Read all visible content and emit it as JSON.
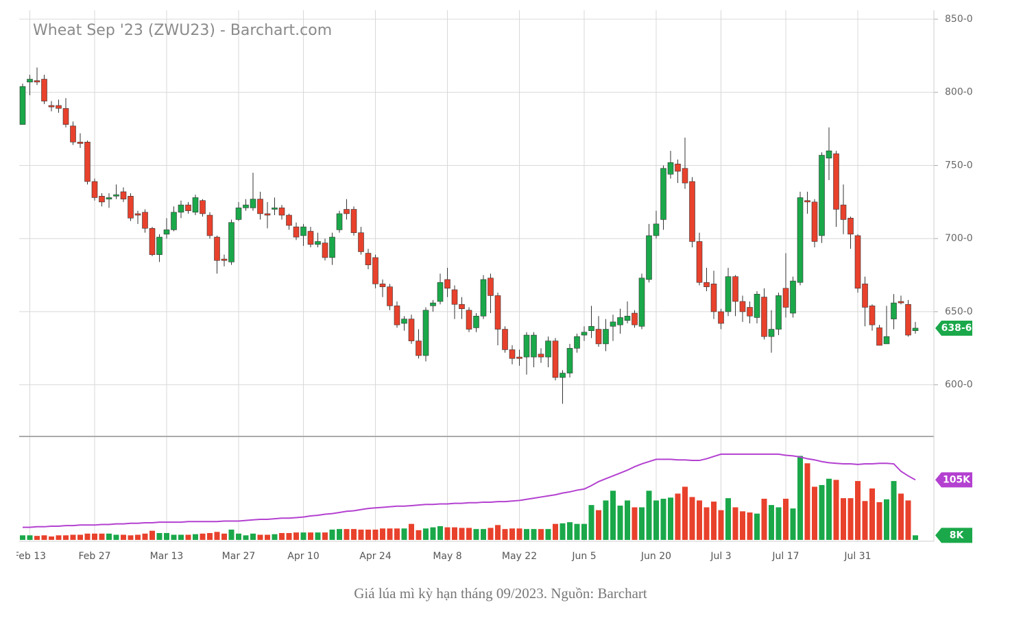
{
  "chart_data": {
    "type": "candlestick",
    "title": "Wheat Sep '23 (ZWU23) - Barchart.com",
    "caption": "Giá lúa mì kỳ hạn tháng 09/2023. Nguồn: Barchart",
    "categories": [
      null,
      "Feb 13",
      null,
      null,
      null,
      null,
      null,
      null,
      null,
      null,
      "Feb 27",
      null,
      null,
      null,
      null,
      null,
      null,
      null,
      null,
      null,
      "Mar 13",
      null,
      null,
      null,
      null,
      null,
      null,
      null,
      null,
      null,
      "Mar 27",
      null,
      null,
      null,
      null,
      null,
      null,
      null,
      null,
      "Apr 10",
      null,
      null,
      null,
      null,
      null,
      null,
      null,
      null,
      null,
      "Apr 24",
      null,
      null,
      null,
      null,
      null,
      null,
      null,
      null,
      null,
      "May 8",
      null,
      null,
      null,
      null,
      null,
      null,
      null,
      null,
      null,
      "May 22",
      null,
      null,
      null,
      null,
      null,
      null,
      null,
      null,
      "Jun 5",
      null,
      null,
      null,
      null,
      null,
      null,
      null,
      null,
      null,
      "Jun 20",
      null,
      null,
      null,
      null,
      null,
      null,
      null,
      null,
      "Jul 3",
      null,
      null,
      null,
      null,
      null,
      null,
      null,
      null,
      "Jul 17",
      null,
      null,
      null,
      null,
      null,
      null,
      null,
      null,
      null,
      "Jul 31",
      null,
      null,
      null,
      null,
      null,
      null,
      null,
      null
    ],
    "open": [
      778,
      807,
      808,
      809,
      791,
      791,
      789,
      777,
      766,
      766,
      739,
      729,
      727,
      729,
      732,
      729,
      717,
      718,
      707,
      689,
      703,
      706,
      718,
      723,
      718,
      726,
      716,
      701,
      686,
      684,
      713,
      721,
      721,
      727,
      717,
      720,
      721,
      716,
      708,
      702,
      705,
      696,
      697,
      687,
      706,
      720,
      720,
      704,
      690,
      687,
      669,
      667,
      654,
      642,
      645,
      630,
      620,
      654,
      657,
      672,
      665,
      655,
      651,
      639,
      647,
      673,
      661,
      638,
      624,
      619,
      619,
      619,
      621,
      619,
      630,
      605,
      608,
      625,
      634,
      637,
      638,
      628,
      640,
      641,
      644,
      649,
      640,
      672,
      702,
      713,
      744,
      751,
      748,
      739,
      698,
      670,
      669,
      650,
      650,
      674,
      657,
      653,
      646,
      660,
      633,
      638,
      666,
      649,
      670,
      726,
      725,
      702,
      755,
      758,
      723,
      714,
      702,
      669,
      654,
      639,
      628,
      645,
      657,
      655,
      637
    ],
    "high": [
      806,
      812,
      817,
      812,
      794,
      795,
      796,
      780,
      772,
      767,
      741,
      731,
      731,
      737,
      735,
      731,
      719,
      720,
      708,
      703,
      714,
      722,
      726,
      725,
      730,
      727,
      718,
      702,
      689,
      713,
      725,
      727,
      745,
      732,
      725,
      728,
      723,
      717,
      711,
      710,
      708,
      704,
      700,
      704,
      719,
      727,
      722,
      708,
      693,
      689,
      672,
      669,
      657,
      647,
      648,
      638,
      653,
      658,
      676,
      680,
      668,
      660,
      653,
      649,
      675,
      676,
      663,
      640,
      627,
      624,
      636,
      636,
      625,
      633,
      632,
      610,
      628,
      635,
      640,
      654,
      647,
      645,
      648,
      652,
      657,
      651,
      676,
      710,
      719,
      750,
      760,
      754,
      769,
      742,
      704,
      680,
      678,
      652,
      680,
      675,
      661,
      657,
      664,
      666,
      651,
      663,
      690,
      674,
      732,
      732,
      727,
      759,
      776,
      760,
      737,
      715,
      703,
      674,
      655,
      641,
      654,
      662,
      661,
      658,
      643
    ],
    "low": [
      778,
      798,
      805,
      792,
      787,
      786,
      776,
      764,
      762,
      737,
      726,
      722,
      721,
      727,
      725,
      712,
      710,
      704,
      688,
      684,
      700,
      705,
      714,
      717,
      716,
      715,
      700,
      676,
      681,
      682,
      712,
      719,
      719,
      713,
      707,
      716,
      713,
      706,
      699,
      695,
      694,
      694,
      685,
      682,
      704,
      713,
      702,
      689,
      679,
      666,
      660,
      651,
      639,
      637,
      628,
      618,
      616,
      650,
      655,
      660,
      645,
      645,
      636,
      636,
      645,
      649,
      627,
      622,
      614,
      613,
      607,
      612,
      615,
      612,
      603,
      587,
      605,
      622,
      630,
      632,
      626,
      623,
      630,
      635,
      642,
      639,
      638,
      670,
      700,
      706,
      741,
      738,
      734,
      694,
      668,
      664,
      645,
      638,
      647,
      647,
      643,
      642,
      642,
      631,
      622,
      634,
      646,
      646,
      668,
      717,
      694,
      697,
      740,
      708,
      703,
      693,
      663,
      640,
      637,
      627,
      628,
      638,
      655,
      633,
      635
    ],
    "close": [
      804,
      809,
      807,
      794,
      790,
      789,
      778,
      766,
      765,
      739,
      728,
      725,
      728,
      730,
      727,
      714,
      716,
      707,
      689,
      701,
      706,
      718,
      723,
      719,
      728,
      717,
      702,
      685,
      685,
      711,
      721,
      723,
      727,
      717,
      716,
      721,
      716,
      709,
      701,
      708,
      696,
      698,
      687,
      701,
      717,
      717,
      704,
      691,
      682,
      669,
      667,
      654,
      641,
      645,
      630,
      620,
      651,
      656,
      670,
      666,
      655,
      652,
      638,
      647,
      672,
      661,
      638,
      624,
      618,
      618,
      634,
      634,
      619,
      630,
      605,
      608,
      625,
      633,
      636,
      640,
      628,
      638,
      643,
      646,
      647,
      641,
      673,
      702,
      710,
      748,
      752,
      746,
      738,
      698,
      670,
      667,
      650,
      642,
      674,
      657,
      650,
      647,
      662,
      633,
      638,
      661,
      653,
      671,
      728,
      725,
      698,
      757,
      760,
      720,
      713,
      703,
      666,
      653,
      641,
      627,
      633,
      656,
      656,
      634,
      638.75
    ],
    "volume": [
      8000,
      8000,
      7000,
      8000,
      6000,
      8000,
      8000,
      9000,
      9000,
      11000,
      11000,
      11000,
      11000,
      9000,
      9000,
      8000,
      9000,
      11000,
      16000,
      12000,
      12000,
      9000,
      9000,
      9000,
      10000,
      11000,
      12000,
      14000,
      11000,
      18000,
      11000,
      8000,
      11000,
      9000,
      9000,
      10000,
      12000,
      12000,
      13000,
      13000,
      13000,
      13000,
      13000,
      18000,
      19000,
      19000,
      19000,
      18000,
      18000,
      18000,
      20000,
      20000,
      20000,
      20000,
      28000,
      17000,
      20000,
      22000,
      24000,
      22000,
      22000,
      21000,
      21000,
      19000,
      19000,
      21000,
      26000,
      19000,
      20000,
      20000,
      19000,
      19000,
      19000,
      19000,
      28000,
      29000,
      31000,
      28000,
      28000,
      61000,
      52000,
      69000,
      86000,
      60000,
      69000,
      57000,
      57000,
      86000,
      69000,
      72000,
      74000,
      81000,
      93000,
      75000,
      69000,
      57000,
      67000,
      52000,
      73000,
      57000,
      50000,
      48000,
      46000,
      72000,
      61000,
      57000,
      72000,
      55000,
      147000,
      134000,
      93000,
      96000,
      107000,
      105000,
      73000,
      73000,
      103000,
      68000,
      90000,
      66000,
      71000,
      103000,
      81000,
      69000,
      8000
    ],
    "volume_ma": [
      22000,
      22000,
      23000,
      23000,
      24000,
      24000,
      25000,
      25000,
      26000,
      26000,
      26000,
      27000,
      27000,
      28000,
      28000,
      29000,
      29000,
      30000,
      30000,
      31000,
      31000,
      31000,
      31000,
      32000,
      32000,
      32000,
      32000,
      32000,
      33000,
      33000,
      33000,
      34000,
      35000,
      36000,
      36000,
      37000,
      38000,
      38000,
      39000,
      40000,
      42000,
      43000,
      45000,
      46000,
      48000,
      50000,
      51000,
      53000,
      55000,
      56000,
      57000,
      58000,
      59000,
      59000,
      60000,
      61000,
      62000,
      62000,
      63000,
      63000,
      64000,
      64000,
      65000,
      65000,
      66000,
      66000,
      67000,
      67000,
      68000,
      69000,
      71000,
      73000,
      75000,
      77000,
      79000,
      82000,
      84000,
      87000,
      89000,
      95000,
      102000,
      107000,
      112000,
      117000,
      122000,
      128000,
      133000,
      137000,
      141000,
      141000,
      141000,
      140000,
      140000,
      139000,
      139000,
      142000,
      146000,
      150000,
      150000,
      150000,
      150000,
      150000,
      150000,
      150000,
      150000,
      150000,
      148000,
      147000,
      145000,
      142000,
      140000,
      137000,
      135000,
      134000,
      133000,
      133000,
      132000,
      133000,
      133000,
      134000,
      134000,
      133000,
      120000,
      112000,
      105000
    ],
    "ylim": [
      564.7,
      856.1
    ],
    "yticks": [
      {
        "value": 600,
        "label": "600-0"
      },
      {
        "value": 650,
        "label": "650-0"
      },
      {
        "value": 700,
        "label": "700-0"
      },
      {
        "value": 750,
        "label": "750-0"
      },
      {
        "value": 800,
        "label": "800-0"
      },
      {
        "value": 850,
        "label": "850-0"
      }
    ],
    "volume_ylim": [
      0,
      181000
    ],
    "last_price": {
      "value": 638.75,
      "label": "638-6"
    },
    "last_volume_ma": {
      "value": 105000,
      "label": "105K"
    },
    "last_volume": {
      "value": 8000,
      "label": "8K"
    },
    "up_color": "#1aa84a",
    "down_color": "#e8412c",
    "ma_color": "#b340d0",
    "grid": true
  }
}
